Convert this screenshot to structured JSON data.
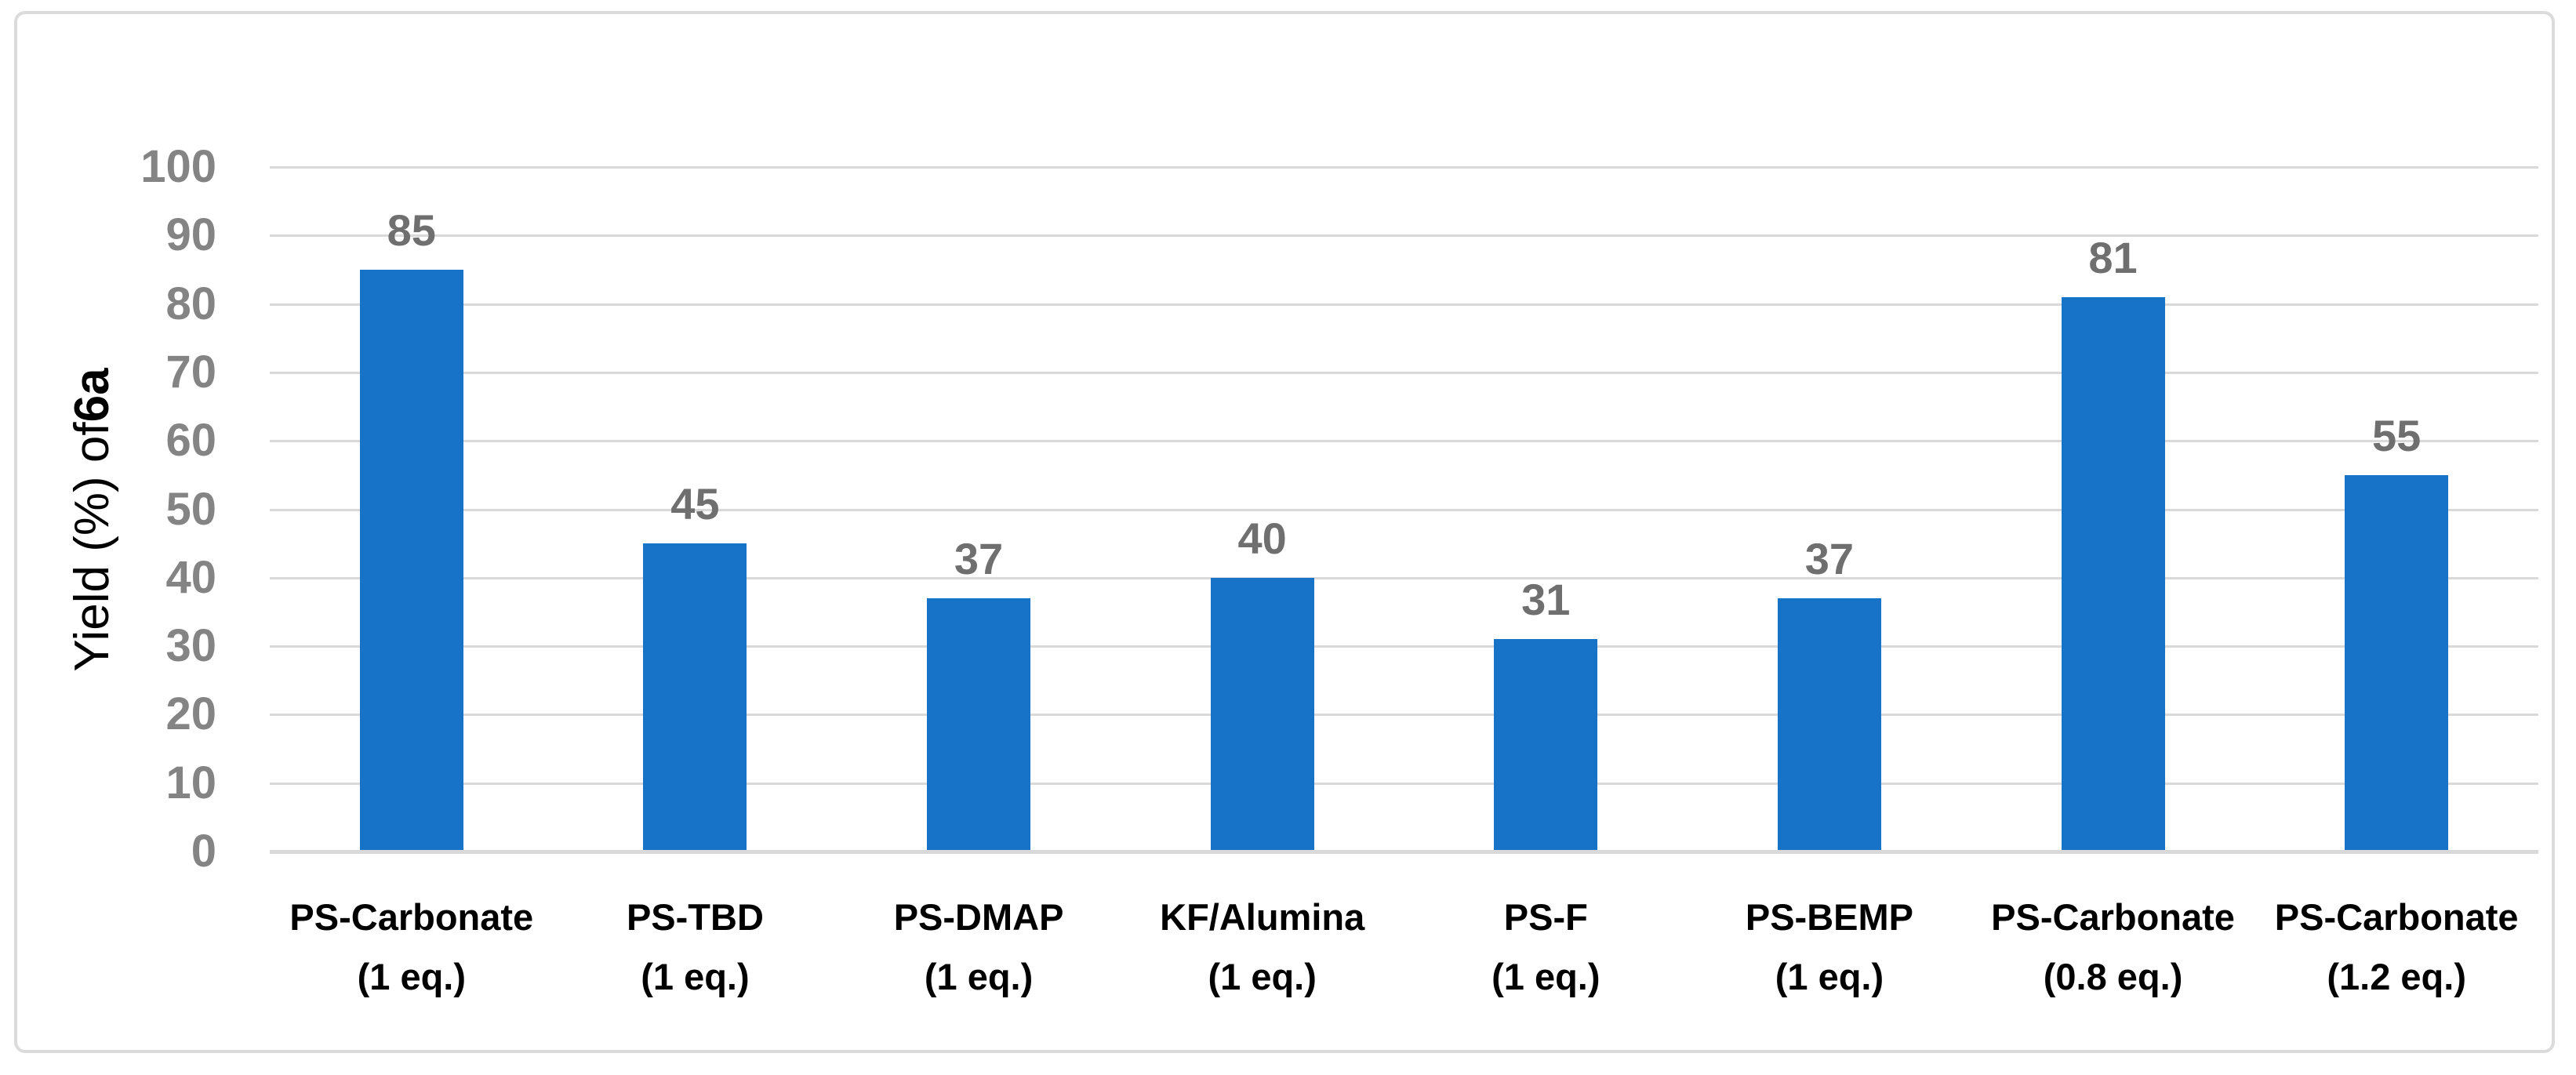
{
  "chart_data": {
    "type": "bar",
    "title": "",
    "ylabel_prefix": "Yield (%) of ",
    "ylabel_bold": "6a",
    "categories": [
      "PS-Carbonate (1 eq.)",
      "PS-TBD (1 eq.)",
      "PS-DMAP (1 eq.)",
      "KF/Alumina (1 eq.)",
      "PS-F (1 eq.)",
      "PS-BEMP (1 eq.)",
      "PS-Carbonate (0.8 eq.)",
      "PS-Carbonate (1.2 eq.)"
    ],
    "category_lines": [
      {
        "line1": "PS-Carbonate",
        "line2": "(1 eq.)"
      },
      {
        "line1": "PS-TBD",
        "line2": "(1 eq.)"
      },
      {
        "line1": "PS-DMAP",
        "line2": "(1 eq.)"
      },
      {
        "line1": "KF/Alumina",
        "line2": "(1 eq.)"
      },
      {
        "line1": "PS-F",
        "line2": "(1 eq.)"
      },
      {
        "line1": "PS-BEMP",
        "line2": "(1 eq.)"
      },
      {
        "line1": "PS-Carbonate",
        "line2": "(0.8 eq.)"
      },
      {
        "line1": "PS-Carbonate",
        "line2": "(1.2 eq.)"
      }
    ],
    "values": [
      85,
      45,
      37,
      40,
      31,
      37,
      81,
      55
    ],
    "ylim": [
      0,
      100
    ],
    "ytick_step": 10,
    "yticks": [
      0,
      10,
      20,
      30,
      40,
      50,
      60,
      70,
      80,
      90,
      100
    ],
    "grid": true,
    "legend": "none",
    "data_labels": true,
    "bar_color": "#1773c8",
    "gridline_color": "#d9d9d9",
    "baseline_color": "#d9d9d9",
    "frame_border_color": "#dbdbdb",
    "tick_label_color": "#848484",
    "data_label_color": "#6f6f6f",
    "category_label_color": "#000000"
  }
}
